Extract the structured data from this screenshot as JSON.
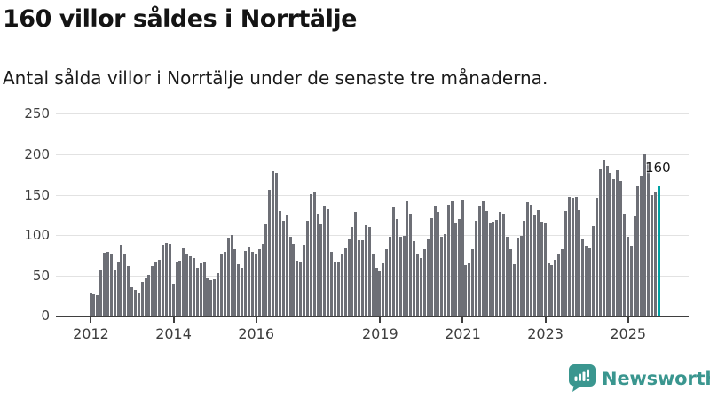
{
  "header": {
    "title": "160 villor såldes i Norrtälje",
    "subtitle": "Antal sålda villor i Norrtälje under de senaste tre månaderna."
  },
  "chart_data": {
    "type": "bar",
    "title": "160 villor såldes i Norrtälje",
    "subtitle": "Antal sålda villor i Norrtälje under de senaste tre månaderna.",
    "unit": "sålda villor (rullande tre månader)",
    "x_start": "2012-01",
    "x_end": "2025-10",
    "x_resolution": "monthly",
    "ylim": [
      0,
      250
    ],
    "y_ticks": [
      0,
      50,
      100,
      150,
      200,
      250
    ],
    "grid": "horizontal",
    "bar_color": "#6d6f76",
    "highlight_last": true,
    "highlight_color": "#00a1a3",
    "annotation": {
      "text": "160",
      "target": "last-bar"
    },
    "x_ticks": [
      {
        "label": "2012",
        "month_index": 0
      },
      {
        "label": "2014",
        "month_index": 24
      },
      {
        "label": "2016",
        "month_index": 48
      },
      {
        "label": "2019",
        "month_index": 84
      },
      {
        "label": "2021",
        "month_index": 108
      },
      {
        "label": "2023",
        "month_index": 132
      },
      {
        "label": "2025",
        "month_index": 156
      }
    ],
    "values": [
      30,
      27,
      26,
      58,
      79,
      80,
      76,
      57,
      68,
      88,
      78,
      62,
      36,
      33,
      30,
      43,
      47,
      51,
      62,
      67,
      70,
      88,
      91,
      90,
      40,
      67,
      69,
      84,
      77,
      74,
      72,
      60,
      65,
      68,
      48,
      45,
      46,
      54,
      76,
      80,
      97,
      100,
      83,
      64,
      60,
      81,
      85,
      80,
      76,
      83,
      90,
      113,
      156,
      179,
      177,
      130,
      118,
      126,
      98,
      90,
      69,
      67,
      88,
      118,
      151,
      153,
      127,
      114,
      137,
      132,
      80,
      67,
      67,
      77,
      84,
      95,
      110,
      129,
      94,
      94,
      112,
      110,
      77,
      60,
      56,
      66,
      83,
      98,
      135,
      120,
      98,
      99,
      142,
      127,
      93,
      78,
      72,
      83,
      95,
      121,
      136,
      129,
      98,
      101,
      138,
      142,
      116,
      120,
      143,
      63,
      65,
      83,
      118,
      137,
      142,
      130,
      116,
      117,
      119,
      129,
      127,
      98,
      83,
      64,
      97,
      99,
      118,
      141,
      138,
      126,
      131,
      117,
      115,
      66,
      63,
      70,
      78,
      83,
      130,
      147,
      146,
      147,
      131,
      95,
      86,
      84,
      111,
      146,
      181,
      193,
      186,
      177,
      169,
      180,
      167,
      127,
      98,
      87,
      123,
      160,
      174,
      200,
      190,
      150,
      154,
      160
    ]
  },
  "footer": {
    "brand": "Newsworthy",
    "brand_color": "#3a968f",
    "logo_icon": "bar-chart-speech-bubble-icon"
  }
}
